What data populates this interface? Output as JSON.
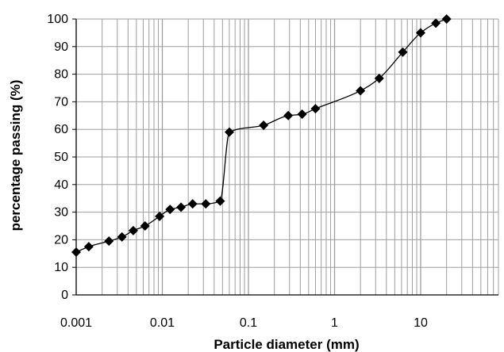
{
  "chart_data": {
    "type": "scatter",
    "title": "",
    "xlabel": "Particle diameter (mm)",
    "ylabel": "percentage passing  (%)",
    "x_scale": "log",
    "xlim": [
      0.001,
      80
    ],
    "ylim": [
      0,
      100
    ],
    "x_tick_labels": [
      "0.001",
      "0.01",
      "0.1",
      "1",
      "10"
    ],
    "x_tick_values": [
      0.001,
      0.01,
      0.1,
      1,
      10
    ],
    "y_tick_labels": [
      "0",
      "10",
      "20",
      "30",
      "40",
      "50",
      "60",
      "70",
      "80",
      "90",
      "100"
    ],
    "y_tick_values": [
      0,
      10,
      20,
      30,
      40,
      50,
      60,
      70,
      80,
      90,
      100
    ],
    "grid": true,
    "marker": "diamond",
    "line": "smooth",
    "colors": {
      "series": "#000000",
      "grid": "#9e9e9e",
      "axis": "#000000",
      "background": "#ffffff"
    },
    "series": [
      {
        "x": [
          0.001,
          0.0014,
          0.0024,
          0.0034,
          0.0046,
          0.0063,
          0.0093,
          0.0123,
          0.0165,
          0.0225,
          0.032,
          0.047,
          0.06,
          0.15,
          0.29,
          0.42,
          0.6,
          2.0,
          3.3,
          6.2,
          10,
          15,
          20
        ],
        "y": [
          15.5,
          17.5,
          19.5,
          21,
          23.3,
          25,
          28.5,
          31,
          31.8,
          33,
          33,
          34,
          59,
          61.5,
          65,
          65.5,
          67.5,
          74,
          78.5,
          88,
          95,
          98.5,
          100
        ]
      }
    ]
  }
}
